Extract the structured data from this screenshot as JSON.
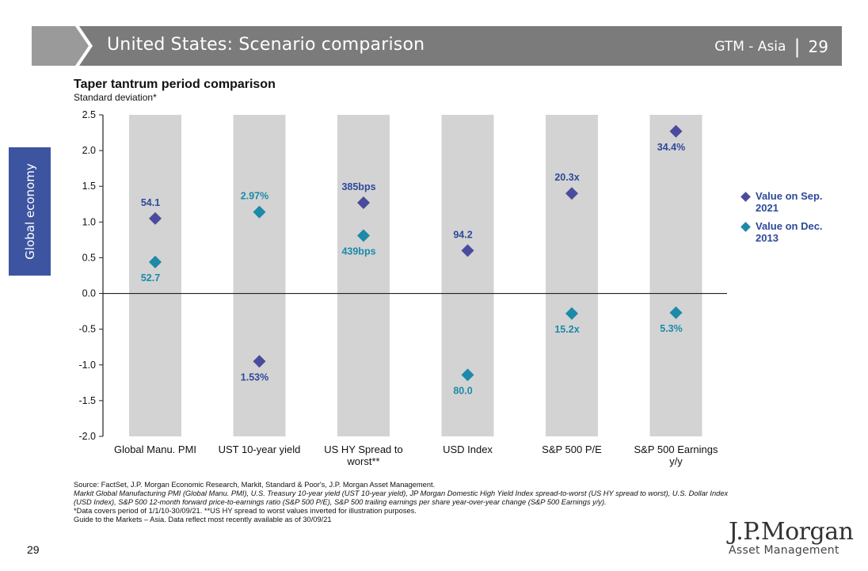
{
  "header": {
    "title": "United States: Scenario comparison",
    "section": "GTM - Asia",
    "separator": "|",
    "page": "29",
    "bar_color": "#7b7b7b"
  },
  "side_tab": {
    "label": "Global economy",
    "color": "#3d55a0"
  },
  "chart_data": {
    "type": "scatter",
    "title": "Taper tantrum period comparison",
    "ylabel": "Standard deviation*",
    "ylim": [
      -2.0,
      2.5
    ],
    "yticks": [
      "2.5",
      "2.0",
      "1.5",
      "1.0",
      "0.5",
      "0.0",
      "-0.5",
      "-1.0",
      "-1.5",
      "-2.0"
    ],
    "ytick_values": [
      2.5,
      2.0,
      1.5,
      1.0,
      0.5,
      0.0,
      -0.5,
      -1.0,
      -1.5,
      -2.0
    ],
    "categories": [
      "Global Manu. PMI",
      "UST 10-year yield",
      "US HY Spread to worst**",
      "USD Index",
      "S&P 500 P/E",
      "S&P 500 Earnings y/y"
    ],
    "category_lines": [
      [
        "Global Manu. PMI"
      ],
      [
        "UST 10-year yield"
      ],
      [
        "US HY Spread to",
        "worst**"
      ],
      [
        "USD Index"
      ],
      [
        "S&P 500 P/E"
      ],
      [
        "S&P 500 Earnings",
        "y/y"
      ]
    ],
    "series": [
      {
        "name": "Value on Sep. 2021",
        "legend_lines": [
          "Value on Sep.",
          "2021"
        ],
        "color": "#4b4b9e",
        "values": [
          1.05,
          -0.95,
          1.27,
          0.6,
          1.4,
          2.27
        ],
        "labels": [
          "54.1",
          "1.53%",
          "385bps",
          "94.2",
          "20.3x",
          "34.4%"
        ],
        "label_pos": [
          "above",
          "below",
          "above",
          "above",
          "above",
          "below"
        ]
      },
      {
        "name": "Value on Dec. 2013",
        "legend_lines": [
          "Value on Dec.",
          "2013"
        ],
        "color": "#1c8aa8",
        "values": [
          0.44,
          1.14,
          0.81,
          -1.14,
          -0.28,
          -0.27
        ],
        "labels": [
          "52.7",
          "2.97%",
          "439bps",
          "80.0",
          "15.2x",
          "5.3%"
        ],
        "label_pos": [
          "below",
          "above",
          "below",
          "below",
          "below",
          "below"
        ]
      }
    ],
    "band_color": "#d3d3d3",
    "label_color": "#2d4a99"
  },
  "footnotes": [
    "Source: FactSet, J.P. Morgan Economic Research, Markit, Standard & Poor's, J.P. Morgan Asset Management.",
    "Markit Global Manufacturing PMI (Global Manu. PMI), U.S. Treasury 10-year yield (UST 10-year yield), JP Morgan Domestic High Yield Index spread-to-worst (US HY spread to worst), U.S. Dollar Index (USD Index), S&P 500 12-month forward price-to-earnings ratio (S&P 500 P/E), S&P 500 trailing earnings per share year-over-year change (S&P 500 Earnings y/y).",
    "*Data covers period of 1/1/10-30/09/21. **US HY spread to worst values inverted for illustration purposes.",
    "Guide to the Markets – Asia. Data reflect most recently available as of 30/09/21"
  ],
  "page_number": "29",
  "logo": {
    "name": "J.P.Morgan",
    "sub": "Asset Management"
  }
}
